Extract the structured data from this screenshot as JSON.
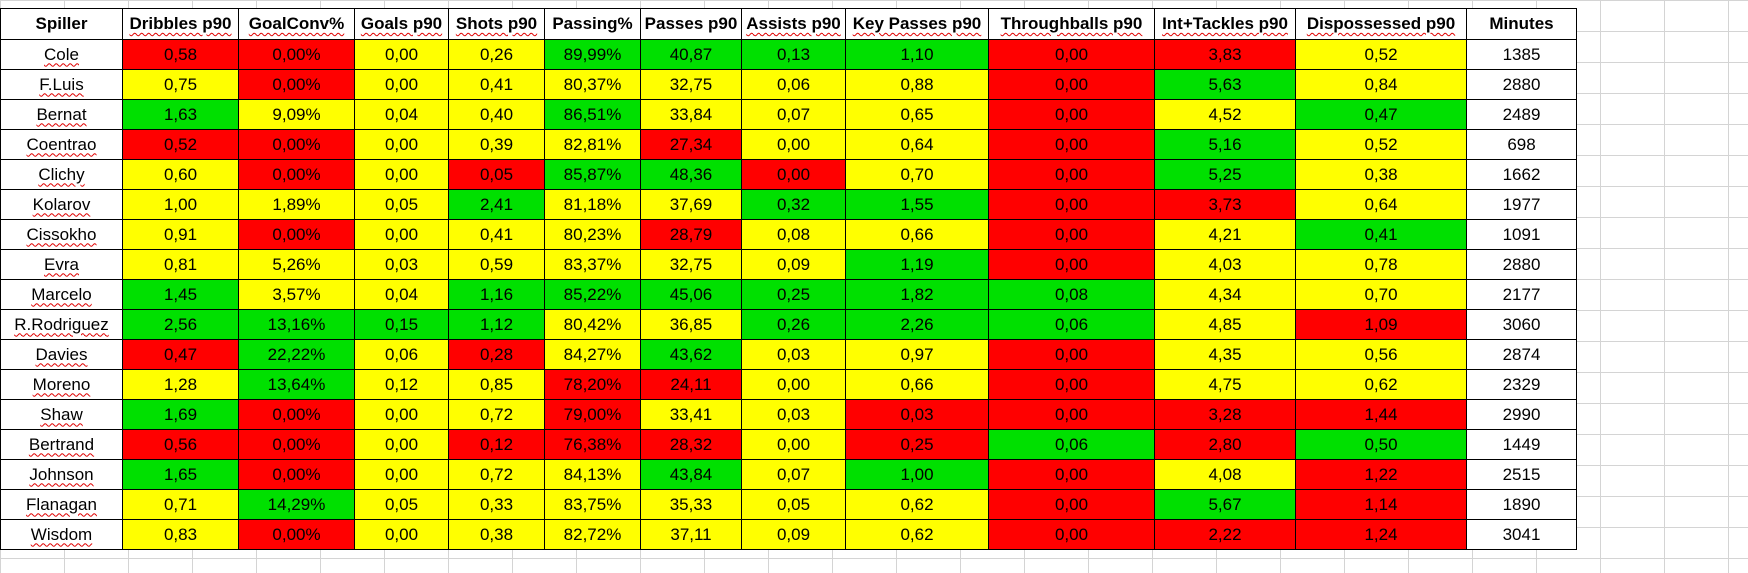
{
  "chart_data": {
    "type": "table",
    "columns": [
      "Spiller",
      "Dribbles p90",
      "GoalConv%",
      "Goals p90",
      "Shots p90",
      "Passing%",
      "Passes p90",
      "Assists p90",
      "Key Passes p90",
      "Throughballs p90",
      "Int+Tackles p90",
      "Dispossessed p90",
      "Minutes"
    ],
    "colors": {
      "red": "#ff0000",
      "yellow": "#ffff00",
      "green": "#00e000",
      "white": "#ffffff"
    },
    "rows": [
      {
        "cells": [
          "Cole",
          "0,58",
          "0,00%",
          "0,00",
          "0,26",
          "89,99%",
          "40,87",
          "0,13",
          "1,10",
          "0,00",
          "3,83",
          "0,52",
          "1385"
        ],
        "colors": [
          "red",
          "red",
          "yellow",
          "yellow",
          "green",
          "green",
          "green",
          "green",
          "red",
          "red",
          "yellow",
          "white"
        ]
      },
      {
        "cells": [
          "F.Luis",
          "0,75",
          "0,00%",
          "0,00",
          "0,41",
          "80,37%",
          "32,75",
          "0,06",
          "0,88",
          "0,00",
          "5,63",
          "0,84",
          "2880"
        ],
        "colors": [
          "yellow",
          "red",
          "yellow",
          "yellow",
          "yellow",
          "yellow",
          "yellow",
          "yellow",
          "red",
          "green",
          "yellow",
          "white"
        ]
      },
      {
        "cells": [
          "Bernat",
          "1,63",
          "9,09%",
          "0,04",
          "0,40",
          "86,51%",
          "33,84",
          "0,07",
          "0,65",
          "0,00",
          "4,52",
          "0,47",
          "2489"
        ],
        "colors": [
          "green",
          "yellow",
          "yellow",
          "yellow",
          "green",
          "yellow",
          "yellow",
          "yellow",
          "red",
          "yellow",
          "green",
          "white"
        ]
      },
      {
        "cells": [
          "Coentrao",
          "0,52",
          "0,00%",
          "0,00",
          "0,39",
          "82,81%",
          "27,34",
          "0,00",
          "0,64",
          "0,00",
          "5,16",
          "0,52",
          "698"
        ],
        "colors": [
          "red",
          "red",
          "yellow",
          "yellow",
          "yellow",
          "red",
          "yellow",
          "yellow",
          "red",
          "green",
          "yellow",
          "white"
        ]
      },
      {
        "cells": [
          "Clichy",
          "0,60",
          "0,00%",
          "0,00",
          "0,05",
          "85,87%",
          "48,36",
          "0,00",
          "0,70",
          "0,00",
          "5,25",
          "0,38",
          "1662"
        ],
        "colors": [
          "yellow",
          "red",
          "yellow",
          "red",
          "green",
          "green",
          "red",
          "yellow",
          "red",
          "green",
          "yellow",
          "white"
        ]
      },
      {
        "cells": [
          "Kolarov",
          "1,00",
          "1,89%",
          "0,05",
          "2,41",
          "81,18%",
          "37,69",
          "0,32",
          "1,55",
          "0,00",
          "3,73",
          "0,64",
          "1977"
        ],
        "colors": [
          "yellow",
          "yellow",
          "yellow",
          "green",
          "yellow",
          "yellow",
          "green",
          "green",
          "red",
          "red",
          "yellow",
          "white"
        ]
      },
      {
        "cells": [
          "Cissokho",
          "0,91",
          "0,00%",
          "0,00",
          "0,41",
          "80,23%",
          "28,79",
          "0,08",
          "0,66",
          "0,00",
          "4,21",
          "0,41",
          "1091"
        ],
        "colors": [
          "yellow",
          "red",
          "yellow",
          "yellow",
          "yellow",
          "red",
          "yellow",
          "yellow",
          "red",
          "yellow",
          "green",
          "white"
        ]
      },
      {
        "cells": [
          "Evra",
          "0,81",
          "5,26%",
          "0,03",
          "0,59",
          "83,37%",
          "32,75",
          "0,09",
          "1,19",
          "0,00",
          "4,03",
          "0,78",
          "2880"
        ],
        "colors": [
          "yellow",
          "yellow",
          "yellow",
          "yellow",
          "yellow",
          "yellow",
          "yellow",
          "green",
          "red",
          "yellow",
          "yellow",
          "white"
        ]
      },
      {
        "cells": [
          "Marcelo",
          "1,45",
          "3,57%",
          "0,04",
          "1,16",
          "85,22%",
          "45,06",
          "0,25",
          "1,82",
          "0,08",
          "4,34",
          "0,70",
          "2177"
        ],
        "colors": [
          "green",
          "yellow",
          "yellow",
          "green",
          "green",
          "green",
          "green",
          "green",
          "green",
          "yellow",
          "yellow",
          "white"
        ]
      },
      {
        "cells": [
          "R.Rodriguez",
          "2,56",
          "13,16%",
          "0,15",
          "1,12",
          "80,42%",
          "36,85",
          "0,26",
          "2,26",
          "0,06",
          "4,85",
          "1,09",
          "3060"
        ],
        "colors": [
          "green",
          "green",
          "green",
          "green",
          "yellow",
          "yellow",
          "green",
          "green",
          "green",
          "yellow",
          "red",
          "white"
        ]
      },
      {
        "cells": [
          "Davies",
          "0,47",
          "22,22%",
          "0,06",
          "0,28",
          "84,27%",
          "43,62",
          "0,03",
          "0,97",
          "0,00",
          "4,35",
          "0,56",
          "2874"
        ],
        "colors": [
          "red",
          "green",
          "yellow",
          "red",
          "yellow",
          "green",
          "yellow",
          "yellow",
          "red",
          "yellow",
          "yellow",
          "white"
        ]
      },
      {
        "cells": [
          "Moreno",
          "1,28",
          "13,64%",
          "0,12",
          "0,85",
          "78,20%",
          "24,11",
          "0,00",
          "0,66",
          "0,00",
          "4,75",
          "0,62",
          "2329"
        ],
        "colors": [
          "yellow",
          "green",
          "yellow",
          "yellow",
          "red",
          "red",
          "yellow",
          "yellow",
          "red",
          "yellow",
          "yellow",
          "white"
        ]
      },
      {
        "cells": [
          "Shaw",
          "1,69",
          "0,00%",
          "0,00",
          "0,72",
          "79,00%",
          "33,41",
          "0,03",
          "0,03",
          "0,00",
          "3,28",
          "1,44",
          "2990"
        ],
        "colors": [
          "green",
          "red",
          "yellow",
          "yellow",
          "red",
          "yellow",
          "yellow",
          "red",
          "red",
          "red",
          "red",
          "white"
        ]
      },
      {
        "cells": [
          "Bertrand",
          "0,56",
          "0,00%",
          "0,00",
          "0,12",
          "76,38%",
          "28,32",
          "0,00",
          "0,25",
          "0,06",
          "2,80",
          "0,50",
          "1449"
        ],
        "colors": [
          "red",
          "red",
          "yellow",
          "red",
          "red",
          "red",
          "yellow",
          "red",
          "green",
          "red",
          "green",
          "white"
        ]
      },
      {
        "cells": [
          "Johnson",
          "1,65",
          "0,00%",
          "0,00",
          "0,72",
          "84,13%",
          "43,84",
          "0,07",
          "1,00",
          "0,00",
          "4,08",
          "1,22",
          "2515"
        ],
        "colors": [
          "green",
          "red",
          "yellow",
          "yellow",
          "yellow",
          "green",
          "yellow",
          "green",
          "red",
          "yellow",
          "red",
          "white"
        ]
      },
      {
        "cells": [
          "Flanagan",
          "0,71",
          "14,29%",
          "0,05",
          "0,33",
          "83,75%",
          "35,33",
          "0,05",
          "0,62",
          "0,00",
          "5,67",
          "1,14",
          "1890"
        ],
        "colors": [
          "yellow",
          "green",
          "yellow",
          "yellow",
          "yellow",
          "yellow",
          "yellow",
          "yellow",
          "red",
          "green",
          "red",
          "white"
        ]
      },
      {
        "cells": [
          "Wisdom",
          "0,83",
          "0,00%",
          "0,00",
          "0,38",
          "82,72%",
          "37,11",
          "0,09",
          "0,62",
          "0,00",
          "2,22",
          "1,24",
          "3041"
        ],
        "colors": [
          "yellow",
          "red",
          "yellow",
          "yellow",
          "yellow",
          "yellow",
          "yellow",
          "yellow",
          "red",
          "red",
          "red",
          "white"
        ]
      }
    ]
  }
}
